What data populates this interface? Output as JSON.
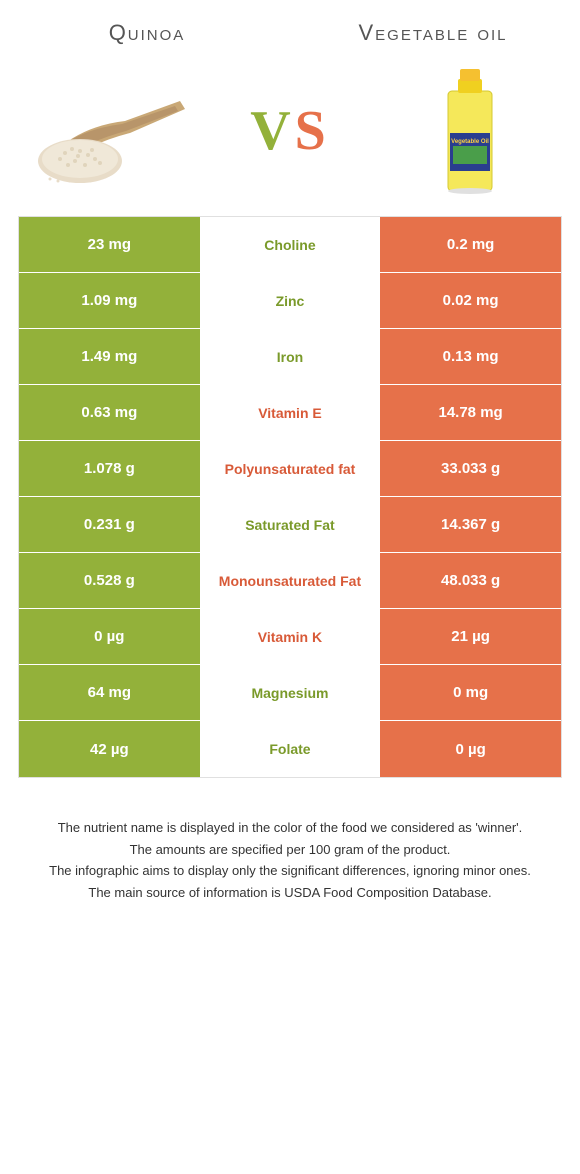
{
  "colors": {
    "left": "#93b13a",
    "right": "#e6714a",
    "left_text": "#7a9a2a",
    "right_text": "#d85a38"
  },
  "header": {
    "left_name": "Quinoa",
    "right_name": "Vegetable oil",
    "vs": "VS"
  },
  "rows": [
    {
      "nutrient": "Choline",
      "left": "23 mg",
      "right": "0.2 mg",
      "winner": "left"
    },
    {
      "nutrient": "Zinc",
      "left": "1.09 mg",
      "right": "0.02 mg",
      "winner": "left"
    },
    {
      "nutrient": "Iron",
      "left": "1.49 mg",
      "right": "0.13 mg",
      "winner": "left"
    },
    {
      "nutrient": "Vitamin E",
      "left": "0.63 mg",
      "right": "14.78 mg",
      "winner": "right"
    },
    {
      "nutrient": "Polyunsaturated fat",
      "left": "1.078 g",
      "right": "33.033 g",
      "winner": "right"
    },
    {
      "nutrient": "Saturated Fat",
      "left": "0.231 g",
      "right": "14.367 g",
      "winner": "left"
    },
    {
      "nutrient": "Monounsaturated Fat",
      "left": "0.528 g",
      "right": "48.033 g",
      "winner": "right"
    },
    {
      "nutrient": "Vitamin K",
      "left": "0 µg",
      "right": "21 µg",
      "winner": "right"
    },
    {
      "nutrient": "Magnesium",
      "left": "64 mg",
      "right": "0 mg",
      "winner": "left"
    },
    {
      "nutrient": "Folate",
      "left": "42 µg",
      "right": "0 µg",
      "winner": "left"
    }
  ],
  "footnotes": [
    "The nutrient name is displayed in the color of the food we considered as 'winner'.",
    "The amounts are specified per 100 gram of the product.",
    "The infographic aims to display only the significant differences, ignoring minor ones.",
    "The main source of information is USDA Food Composition Database."
  ]
}
